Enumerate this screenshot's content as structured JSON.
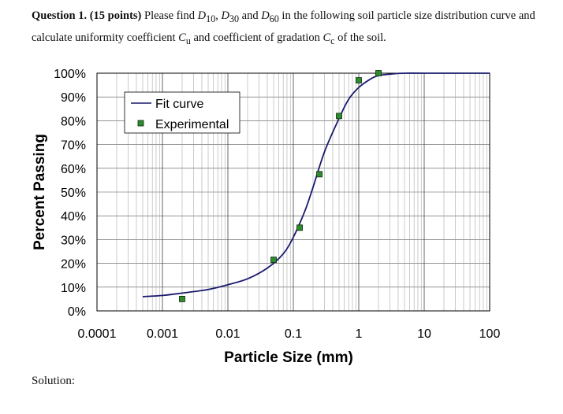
{
  "question": {
    "lead": "Question 1. (15 points)",
    "p1": " Please find ",
    "d10": "D",
    "d10_sub": "10",
    "sep1": ", ",
    "d30": "D",
    "d30_sub": "30",
    "and1": " and ",
    "d60": "D",
    "d60_sub": "60",
    "p2": " in the following soil particle size distribution curve and calculate uniformity coefficient ",
    "cu": "C",
    "cu_sub": "u",
    "p3": " and coefficient of gradation ",
    "cc": "C",
    "cc_sub": "c",
    "p4": " of the soil."
  },
  "solution_label": "Solution:",
  "chart_data": {
    "type": "line",
    "xlabel": "Particle Size (mm)",
    "ylabel": "Percent Passing",
    "x_scale": "log",
    "xlim": [
      0.0001,
      100
    ],
    "ylim": [
      0,
      100
    ],
    "x_tick_labels": [
      "0.0001",
      "0.001",
      "0.01",
      "0.1",
      "1",
      "10",
      "100"
    ],
    "y_tick_labels": [
      "0%",
      "10%",
      "20%",
      "30%",
      "40%",
      "50%",
      "60%",
      "70%",
      "80%",
      "90%",
      "100%"
    ],
    "grid": true,
    "legend_position": "top-left",
    "series": [
      {
        "name": "Fit curve",
        "kind": "line",
        "color": "#1a1a6e",
        "x": [
          0.0005,
          0.001,
          0.002,
          0.005,
          0.01,
          0.02,
          0.04,
          0.07,
          0.1,
          0.15,
          0.2,
          0.3,
          0.5,
          0.7,
          1,
          1.5,
          2,
          3,
          5,
          10,
          100
        ],
        "y": [
          6,
          6.5,
          7.5,
          9,
          11,
          13.5,
          18,
          24,
          31,
          42,
          52,
          67,
          81,
          89,
          94,
          97.5,
          99,
          99.6,
          100,
          100,
          100
        ]
      },
      {
        "name": "Experimental",
        "kind": "marker",
        "color": "#2e8b2e",
        "x": [
          0.002,
          0.05,
          0.125,
          0.25,
          0.5,
          1,
          2
        ],
        "y": [
          5,
          21.5,
          35,
          57.5,
          82,
          97,
          100
        ]
      }
    ]
  }
}
